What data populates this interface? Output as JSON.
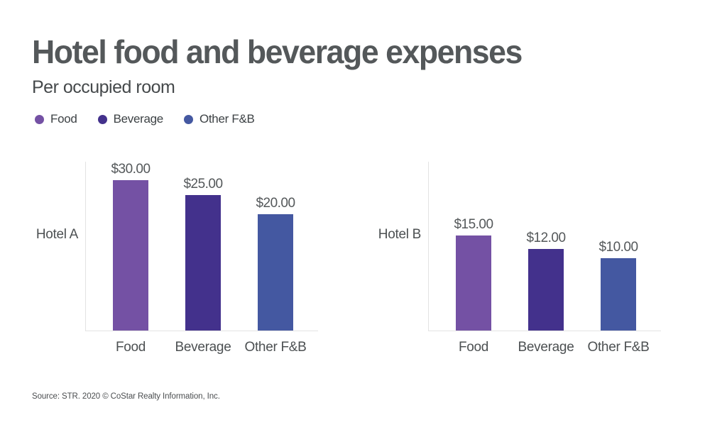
{
  "header": {
    "title": "Hotel food and beverage expenses",
    "subtitle": "Per occupied room"
  },
  "legend": {
    "position": "top-left",
    "items": [
      {
        "label": "Food"
      },
      {
        "label": "Beverage"
      },
      {
        "label": "Other F&B"
      }
    ]
  },
  "chart_data": {
    "type": "bar",
    "title": "Hotel food and beverage expenses",
    "subtitle": "Per occupied room",
    "categories": [
      "Food",
      "Beverage",
      "Other F&B"
    ],
    "colors": {
      "Food": "#7451a4",
      "Beverage": "#43318c",
      "Other F&B": "#4458a1"
    },
    "value_prefix": "$",
    "baseline": 0,
    "grid": false,
    "y_axis_ticks": "hidden",
    "legend_position": "top-left",
    "panels": [
      {
        "group": "Hotel A",
        "bars": [
          {
            "category": "Food",
            "value": 30,
            "value_label": "$30.00"
          },
          {
            "category": "Beverage",
            "value": 25,
            "value_label": "$25.00"
          },
          {
            "category": "Other F&B",
            "value": 20,
            "value_label": "$20.00"
          }
        ]
      },
      {
        "group": "Hotel B",
        "bars": [
          {
            "category": "Food",
            "value": 15,
            "value_label": "$15.00"
          },
          {
            "category": "Beverage",
            "value": 12,
            "value_label": "$12.00"
          },
          {
            "category": "Other F&B",
            "value": 10,
            "value_label": "$10.00"
          }
        ]
      }
    ]
  },
  "source": "Source: STR. 2020 © CoStar Realty Information, Inc."
}
